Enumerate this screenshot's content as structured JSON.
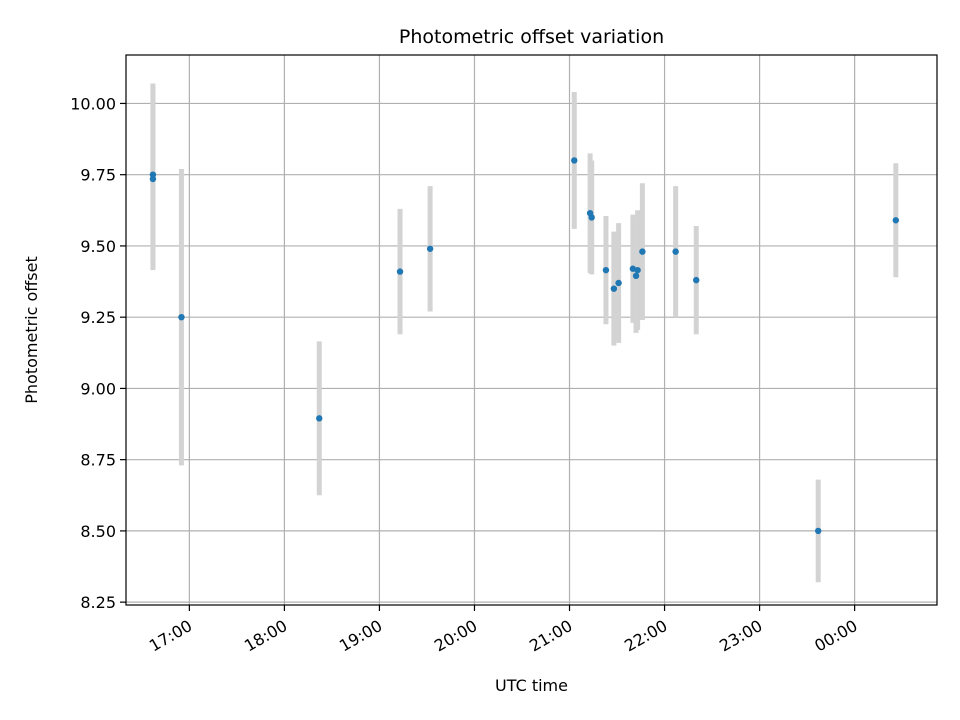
{
  "chart_data": {
    "type": "scatter",
    "title": "Photometric offset variation",
    "xlabel": "UTC time",
    "ylabel": "Photometric offset",
    "x_ticks": [
      "17:00",
      "18:00",
      "19:00",
      "20:00",
      "21:00",
      "22:00",
      "23:00",
      "00:00"
    ],
    "y_ticks": [
      "8.25",
      "8.50",
      "8.75",
      "9.00",
      "9.25",
      "9.50",
      "9.75",
      "10.00"
    ],
    "xlim": [
      "16:20",
      "00:52"
    ],
    "ylim": [
      8.24,
      10.17
    ],
    "grid": true,
    "colors": {
      "point": "#1f77b4",
      "errorbar": "#d3d3d3",
      "grid": "#b0b0b0"
    },
    "series": [
      {
        "points": [
          {
            "x": "16:37",
            "y": 9.75,
            "err": 0.32
          },
          {
            "x": "16:37",
            "y": 9.735,
            "err": 0.32
          },
          {
            "x": "16:55",
            "y": 9.25,
            "err": 0.52
          },
          {
            "x": "18:22",
            "y": 8.895,
            "err": 0.27
          },
          {
            "x": "19:13",
            "y": 9.41,
            "err": 0.22
          },
          {
            "x": "19:32",
            "y": 9.49,
            "err": 0.22
          },
          {
            "x": "21:03",
            "y": 9.8,
            "err": 0.24
          },
          {
            "x": "21:13",
            "y": 9.615,
            "err": 0.21
          },
          {
            "x": "21:14",
            "y": 9.6,
            "err": 0.2
          },
          {
            "x": "21:23",
            "y": 9.415,
            "err": 0.19
          },
          {
            "x": "21:28",
            "y": 9.35,
            "err": 0.2
          },
          {
            "x": "21:31",
            "y": 9.37,
            "err": 0.21
          },
          {
            "x": "21:40",
            "y": 9.42,
            "err": 0.19
          },
          {
            "x": "21:42",
            "y": 9.395,
            "err": 0.2
          },
          {
            "x": "21:43",
            "y": 9.415,
            "err": 0.21
          },
          {
            "x": "21:46",
            "y": 9.48,
            "err": 0.24
          },
          {
            "x": "22:07",
            "y": 9.48,
            "err": 0.23
          },
          {
            "x": "22:20",
            "y": 9.38,
            "err": 0.19
          },
          {
            "x": "23:37",
            "y": 8.5,
            "err": 0.18
          },
          {
            "x": "00:26",
            "y": 9.59,
            "err": 0.2
          }
        ]
      }
    ]
  }
}
